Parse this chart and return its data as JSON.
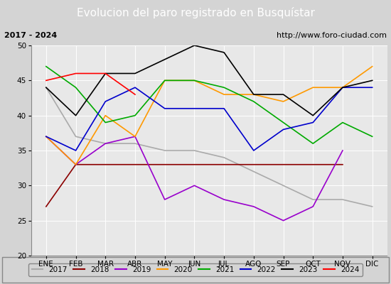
{
  "title": "Evolucion del paro registrado en Busquístar",
  "subtitle_left": "2017 - 2024",
  "subtitle_right": "http://www.foro-ciudad.com",
  "months": [
    "ENE",
    "FEB",
    "MAR",
    "ABR",
    "MAY",
    "JUN",
    "JUL",
    "AGO",
    "SEP",
    "OCT",
    "NOV",
    "DIC"
  ],
  "series": {
    "2017": {
      "color": "#aaaaaa",
      "data": [
        44,
        37,
        36,
        36,
        35,
        35,
        34,
        32,
        30,
        28,
        28,
        27
      ]
    },
    "2018": {
      "color": "#8b0000",
      "data": [
        27,
        33,
        33,
        33,
        33,
        33,
        33,
        33,
        33,
        33,
        33,
        null
      ]
    },
    "2019": {
      "color": "#9900cc",
      "data": [
        37,
        33,
        36,
        37,
        28,
        30,
        28,
        27,
        25,
        27,
        35,
        null
      ]
    },
    "2020": {
      "color": "#ff9900",
      "data": [
        37,
        33,
        40,
        37,
        45,
        45,
        43,
        43,
        42,
        44,
        44,
        47
      ]
    },
    "2021": {
      "color": "#00aa00",
      "data": [
        47,
        44,
        39,
        40,
        45,
        45,
        44,
        42,
        39,
        36,
        39,
        37
      ]
    },
    "2022": {
      "color": "#0000cc",
      "data": [
        37,
        35,
        42,
        44,
        41,
        41,
        41,
        35,
        38,
        39,
        44,
        44
      ]
    },
    "2023": {
      "color": "#000000",
      "data": [
        44,
        40,
        46,
        46,
        48,
        50,
        49,
        43,
        43,
        40,
        44,
        45
      ]
    },
    "2024": {
      "color": "#ff0000",
      "data": [
        45,
        46,
        46,
        43,
        null,
        null,
        null,
        null,
        null,
        null,
        null,
        null
      ]
    }
  },
  "ylim": [
    20,
    50
  ],
  "yticks": [
    20,
    25,
    30,
    35,
    40,
    45,
    50
  ],
  "bg_color": "#d4d4d4",
  "plot_bg_color": "#e8e8e8",
  "title_bg_color": "#4472c4",
  "title_color": "#ffffff",
  "header_bg_color": "#d4d4d4"
}
